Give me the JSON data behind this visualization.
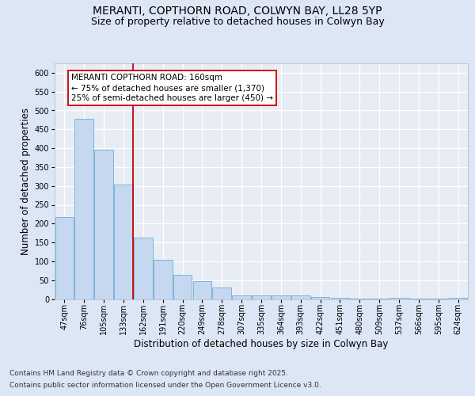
{
  "title_line1": "MERANTI, COPTHORN ROAD, COLWYN BAY, LL28 5YP",
  "title_line2": "Size of property relative to detached houses in Colwyn Bay",
  "xlabel": "Distribution of detached houses by size in Colwyn Bay",
  "ylabel": "Number of detached properties",
  "categories": [
    "47sqm",
    "76sqm",
    "105sqm",
    "133sqm",
    "162sqm",
    "191sqm",
    "220sqm",
    "249sqm",
    "278sqm",
    "307sqm",
    "335sqm",
    "364sqm",
    "393sqm",
    "422sqm",
    "451sqm",
    "480sqm",
    "509sqm",
    "537sqm",
    "566sqm",
    "595sqm",
    "624sqm"
  ],
  "values": [
    218,
    478,
    395,
    303,
    163,
    105,
    65,
    47,
    31,
    10,
    10,
    9,
    10,
    5,
    3,
    2,
    1,
    4,
    1,
    1,
    4
  ],
  "bar_color": "#c5d8f0",
  "bar_edge_color": "#7ab5d8",
  "vline_color": "#cc0000",
  "annotation_text": "MERANTI COPTHORN ROAD: 160sqm\n← 75% of detached houses are smaller (1,370)\n25% of semi-detached houses are larger (450) →",
  "ylim": [
    0,
    625
  ],
  "yticks": [
    0,
    50,
    100,
    150,
    200,
    250,
    300,
    350,
    400,
    450,
    500,
    550,
    600
  ],
  "background_color": "#dce6f5",
  "plot_bg_color": "#e8edf5",
  "footer_line1": "Contains HM Land Registry data © Crown copyright and database right 2025.",
  "footer_line2": "Contains public sector information licensed under the Open Government Licence v3.0.",
  "title_fontsize": 10,
  "subtitle_fontsize": 9,
  "axis_label_fontsize": 8.5,
  "tick_fontsize": 7,
  "annot_fontsize": 7.5,
  "footer_fontsize": 6.5,
  "vline_bar_index": 4
}
